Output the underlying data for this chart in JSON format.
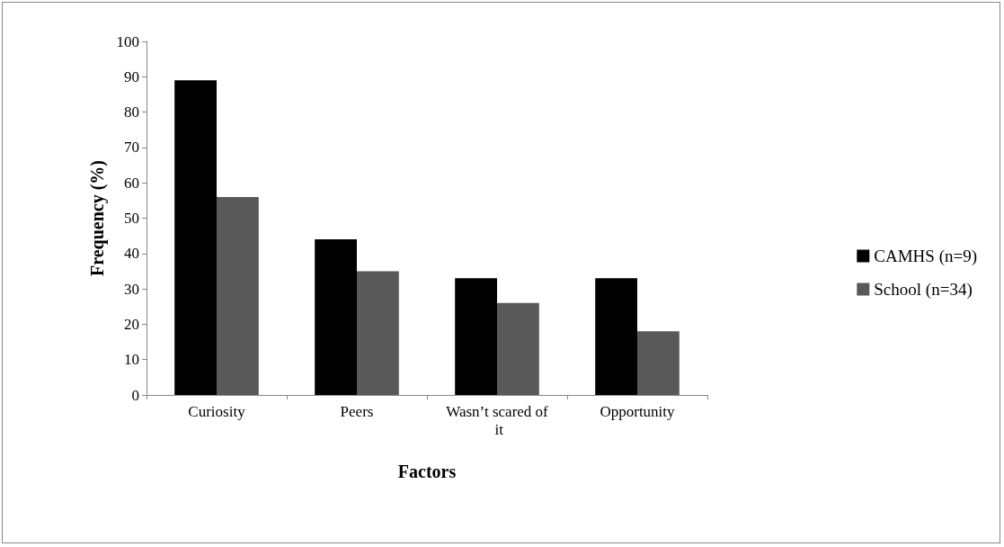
{
  "chart_data": {
    "type": "bar",
    "xlabel": "Factors",
    "ylabel": "Frequency (%)",
    "categories": [
      "Curiosity",
      "Peers",
      "Wasn’t scared of it",
      "Opportunity"
    ],
    "series": [
      {
        "name": "CAMHS (n=9)",
        "color": "#000000",
        "values": [
          89,
          44,
          33,
          33
        ]
      },
      {
        "name": "School (n=34)",
        "color": "#595959",
        "values": [
          56,
          35,
          26,
          18
        ]
      }
    ],
    "ylim": [
      0,
      100
    ],
    "yticks": [
      0,
      10,
      20,
      30,
      40,
      50,
      60,
      70,
      80,
      90,
      100
    ],
    "grid": false,
    "legend": "right"
  }
}
